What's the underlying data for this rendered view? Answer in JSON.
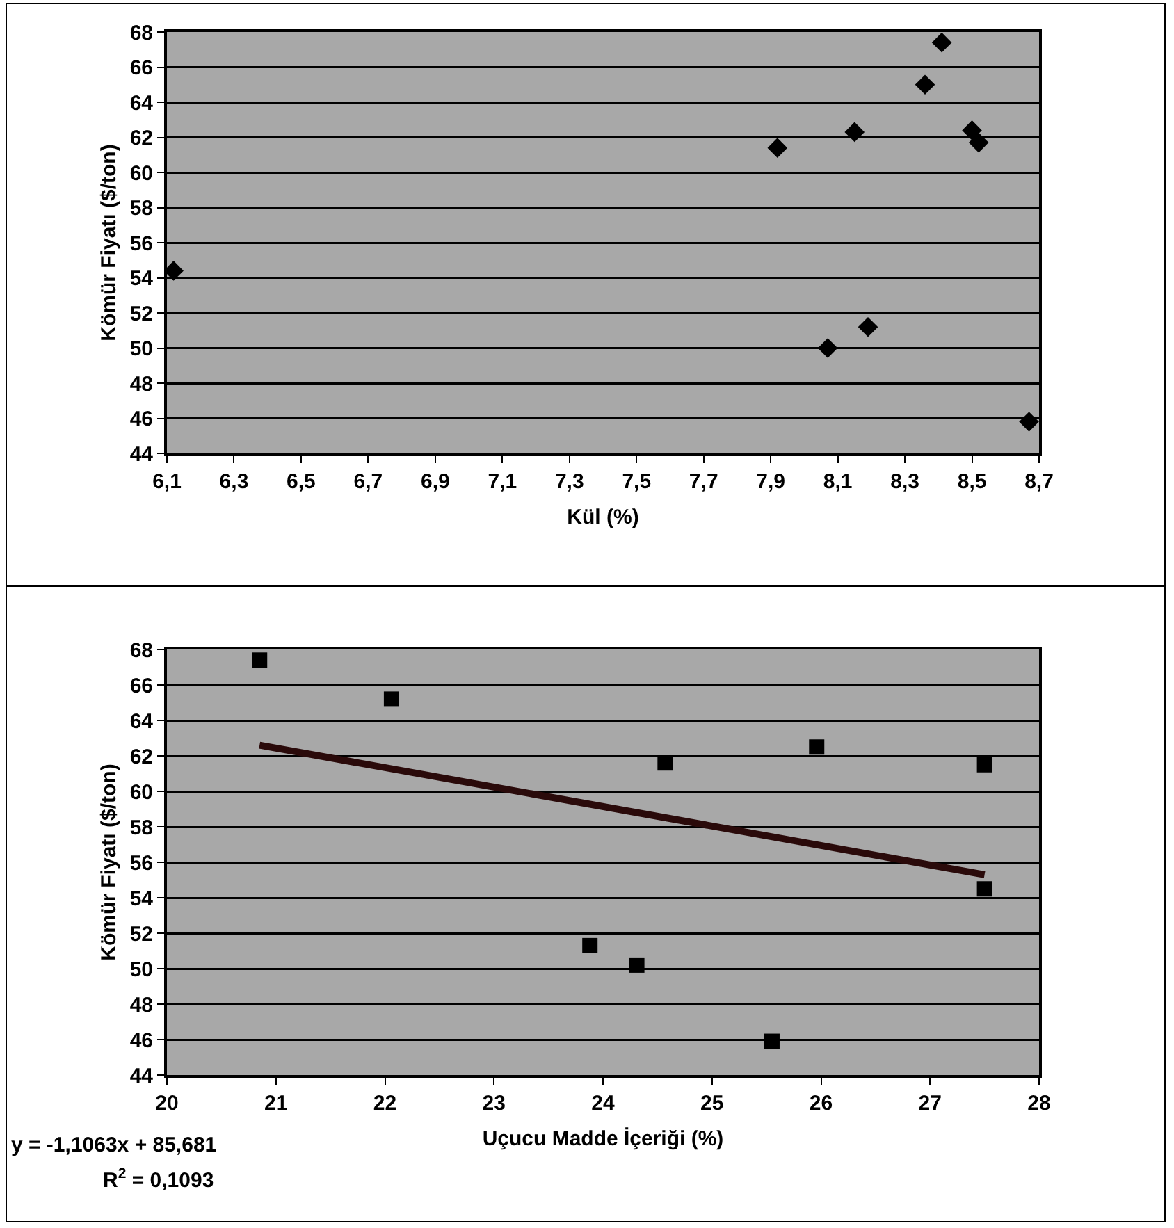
{
  "chart_data": [
    {
      "type": "scatter",
      "xlabel": "Kül (%)",
      "ylabel": "Kömür Fiyatı ($/ton)",
      "marker": "diamond",
      "grid": "y",
      "xlim": [
        6.1,
        8.7
      ],
      "xticks": [
        {
          "value": 6.1,
          "label": "6,1"
        },
        {
          "value": 6.3,
          "label": "6,3"
        },
        {
          "value": 6.5,
          "label": "6,5"
        },
        {
          "value": 6.7,
          "label": "6,7"
        },
        {
          "value": 6.9,
          "label": "6,9"
        },
        {
          "value": 7.1,
          "label": "7,1"
        },
        {
          "value": 7.3,
          "label": "7,3"
        },
        {
          "value": 7.5,
          "label": "7,5"
        },
        {
          "value": 7.7,
          "label": "7,7"
        },
        {
          "value": 7.9,
          "label": "7,9"
        },
        {
          "value": 8.1,
          "label": "8,1"
        },
        {
          "value": 8.3,
          "label": "8,3"
        },
        {
          "value": 8.5,
          "label": "8,5"
        },
        {
          "value": 8.7,
          "label": "8,7"
        }
      ],
      "ylim": [
        44,
        68
      ],
      "yticks": [
        44,
        46,
        48,
        50,
        52,
        54,
        56,
        58,
        60,
        62,
        64,
        66,
        68
      ],
      "series": [
        {
          "color": "#000000",
          "x": [
            6.12,
            7.92,
            8.15,
            8.07,
            8.19,
            8.36,
            8.41,
            8.5,
            8.52,
            8.67
          ],
          "values": [
            54.4,
            61.4,
            62.3,
            50.0,
            51.2,
            65.0,
            67.4,
            62.4,
            61.7,
            45.8
          ]
        }
      ]
    },
    {
      "type": "scatter",
      "xlabel": "Uçucu Madde İçeriği (%)",
      "ylabel": "Kömür Fiyatı ($/ton)",
      "grid": "y",
      "xlim": [
        20,
        28
      ],
      "xticks": [
        20,
        21,
        22,
        23,
        24,
        25,
        26,
        27,
        28
      ],
      "ylim": [
        44,
        68
      ],
      "yticks": [
        44,
        46,
        48,
        50,
        52,
        54,
        56,
        58,
        60,
        62,
        64,
        66,
        68
      ],
      "annotations": [
        "y = -1,1063x + 85,681",
        "R$^{2}$ = 0,1093"
      ],
      "series": [
        {
          "color": "#000000",
          "marker": "square",
          "x": [
            20.85,
            22.06,
            24.57,
            25.96,
            27.5,
            27.5,
            23.88,
            24.31,
            25.55
          ],
          "values": [
            67.4,
            65.2,
            61.6,
            62.5,
            61.5,
            54.5,
            51.3,
            50.2,
            45.9
          ]
        },
        {
          "type": "line",
          "marker": "none",
          "color": "#2a0a0a",
          "x": [
            20.85,
            27.5
          ],
          "values": [
            62.6,
            55.3
          ]
        }
      ]
    }
  ]
}
